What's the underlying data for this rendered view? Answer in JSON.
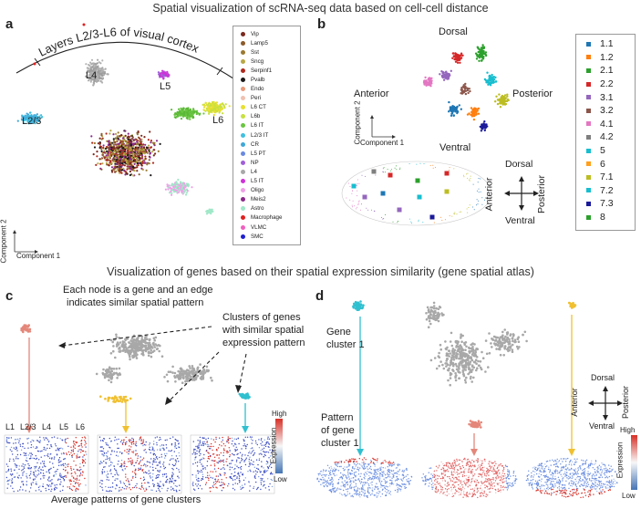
{
  "titles": {
    "top": "Spatial visualization of scRNA-seq data based on cell-cell distance",
    "middle": "Visualization of genes based on their spatial expression similarity (gene spatial atlas)"
  },
  "panel_a": {
    "letter": "a",
    "arc_title": "Layers L2/3-L6 of visual cortex",
    "cluster_labels": {
      "l4": "L4",
      "l5": "L5",
      "l6": "L6",
      "l23": "L2/3"
    },
    "axis_x": "Component 1",
    "axis_y": "Component 2",
    "legend": [
      {
        "label": "Vip",
        "color": "#7a2a1f"
      },
      {
        "label": "Lamp5",
        "color": "#8b5a2b"
      },
      {
        "label": "Sst",
        "color": "#9a7a32"
      },
      {
        "label": "Sncg",
        "color": "#b8a845"
      },
      {
        "label": "Serpinf1",
        "color": "#b02a1e"
      },
      {
        "label": "Pvalb",
        "color": "#1a1a1a"
      },
      {
        "label": "Endo",
        "color": "#e89a7a"
      },
      {
        "label": "Peri",
        "color": "#f0c0b0"
      },
      {
        "label": "L6 CT",
        "color": "#e8e030"
      },
      {
        "label": "L6b",
        "color": "#c8e040"
      },
      {
        "label": "L6 IT",
        "color": "#6ac640"
      },
      {
        "label": "L2/3 IT",
        "color": "#40c0e0"
      },
      {
        "label": "CR",
        "color": "#40a8d8"
      },
      {
        "label": "L5 PT",
        "color": "#6a8ae0"
      },
      {
        "label": "NP",
        "color": "#a060d8"
      },
      {
        "label": "L4",
        "color": "#a8a8a8"
      },
      {
        "label": "L5 IT",
        "color": "#d030d8"
      },
      {
        "label": "Oligo",
        "color": "#f0a0e8"
      },
      {
        "label": "Meis2",
        "color": "#8a2a8a"
      },
      {
        "label": "Astro",
        "color": "#a0e8c8"
      },
      {
        "label": "Macrophage",
        "color": "#e02020"
      },
      {
        "label": "VLMC",
        "color": "#f060c0"
      },
      {
        "label": "SMC",
        "color": "#2020d0"
      }
    ]
  },
  "panel_b": {
    "letter": "b",
    "dir_dorsal": "Dorsal",
    "dir_ventral": "Ventral",
    "dir_anterior": "Anterior",
    "dir_posterior": "Posterior",
    "axis_x": "Component 1",
    "axis_y": "Component 2",
    "compass": {
      "dorsal": "Dorsal",
      "ventral": "Ventral",
      "anterior": "Anterior",
      "posterior": "Posterior"
    },
    "legend": [
      {
        "label": "1.1",
        "color": "#1f77b4"
      },
      {
        "label": "1.2",
        "color": "#ff7f0e"
      },
      {
        "label": "2.1",
        "color": "#2ca02c"
      },
      {
        "label": "2.2",
        "color": "#d62728"
      },
      {
        "label": "3.1",
        "color": "#9467bd"
      },
      {
        "label": "3.2",
        "color": "#8c564b"
      },
      {
        "label": "4.1",
        "color": "#e377c2"
      },
      {
        "label": "4.2",
        "color": "#7f7f7f"
      },
      {
        "label": "5",
        "color": "#17becf"
      },
      {
        "label": "6",
        "color": "#ff9f1c"
      },
      {
        "label": "7.1",
        "color": "#bcbd22"
      },
      {
        "label": "7.2",
        "color": "#17becf"
      },
      {
        "label": "7.3",
        "color": "#1a1a9a"
      },
      {
        "label": "8",
        "color": "#2ca02c"
      }
    ]
  },
  "panel_c": {
    "letter": "c",
    "node_note_line1": "Each node is a gene and an edge",
    "node_note_line2": "indicates similar spatial pattern",
    "cluster_note_line1": "Clusters of genes",
    "cluster_note_line2": "with similar spatial",
    "cluster_note_line3": "expression pattern",
    "layers": [
      "L1",
      "L2/3",
      "L4",
      "L5",
      "L6"
    ],
    "scale_high": "High",
    "scale_low": "Low",
    "scale_title": "Expression",
    "caption": "Average patterns of gene clusters"
  },
  "panel_d": {
    "letter": "d",
    "gene_cluster_line1": "Gene",
    "gene_cluster_line2": "cluster 1",
    "pattern_line1": "Pattern",
    "pattern_line2": "of gene",
    "pattern_line3": "cluster 1",
    "compass": {
      "dorsal": "Dorsal",
      "ventral": "Ventral",
      "anterior": "Anterior",
      "posterior": "Posterior"
    },
    "scale_high": "High",
    "scale_low": "Low",
    "scale_title": "Expression"
  }
}
